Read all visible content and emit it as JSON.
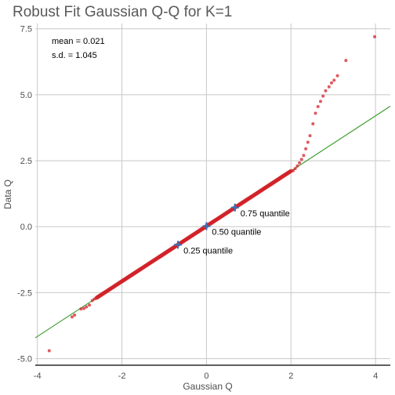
{
  "chart_data": {
    "type": "scatter",
    "title": "Robust Fit Gaussian Q-Q for K=1",
    "xlabel": "Gaussian Q",
    "ylabel": "Data Q",
    "xlim": [
      -4.05,
      4.35
    ],
    "ylim": [
      -5.25,
      7.7
    ],
    "x_ticks": [
      -4,
      -2,
      0,
      2,
      4
    ],
    "x_tick_labels": [
      "-4",
      "-2",
      "0",
      "2",
      "4"
    ],
    "y_ticks": [
      -5.0,
      -2.5,
      0.0,
      2.5,
      5.0,
      7.5
    ],
    "y_tick_labels": [
      "-5.0",
      "-2.5",
      "0.0",
      "2.5",
      "5.0",
      "7.5"
    ],
    "grid": true,
    "stats": {
      "mean_text": "mean = 0.021",
      "sd_text": "s.d. = 1.045"
    },
    "fit_line": {
      "intercept": 0.021,
      "slope": 1.045,
      "color": "#3a9a2a"
    },
    "quantile_markers": [
      {
        "x": -0.674,
        "y": -0.684,
        "label": "0.25 quantile"
      },
      {
        "x": 0.0,
        "y": 0.021,
        "label": "0.50 quantile"
      },
      {
        "x": 0.674,
        "y": 0.725,
        "label": "0.75 quantile"
      }
    ],
    "marker_color": "#3b6fb5",
    "point_color": "#d2232a",
    "body_segment": {
      "x_start": -2.6,
      "x_end": 2.0
    },
    "tail_points": [
      {
        "x": -3.72,
        "y": -4.7
      },
      {
        "x": -3.18,
        "y": -3.42
      },
      {
        "x": -3.12,
        "y": -3.35
      },
      {
        "x": -2.97,
        "y": -3.12
      },
      {
        "x": -2.9,
        "y": -3.1
      },
      {
        "x": -2.84,
        "y": -3.04
      },
      {
        "x": -2.77,
        "y": -2.97
      },
      {
        "x": -2.7,
        "y": -2.8
      },
      {
        "x": -2.65,
        "y": -2.74
      },
      {
        "x": 2.05,
        "y": 2.12
      },
      {
        "x": 2.1,
        "y": 2.2
      },
      {
        "x": 2.15,
        "y": 2.3
      },
      {
        "x": 2.2,
        "y": 2.42
      },
      {
        "x": 2.25,
        "y": 2.55
      },
      {
        "x": 2.3,
        "y": 2.7
      },
      {
        "x": 2.35,
        "y": 2.95
      },
      {
        "x": 2.4,
        "y": 3.2
      },
      {
        "x": 2.45,
        "y": 3.45
      },
      {
        "x": 2.52,
        "y": 3.9
      },
      {
        "x": 2.58,
        "y": 4.3
      },
      {
        "x": 2.64,
        "y": 4.55
      },
      {
        "x": 2.7,
        "y": 4.75
      },
      {
        "x": 2.76,
        "y": 4.95
      },
      {
        "x": 2.82,
        "y": 5.15
      },
      {
        "x": 2.9,
        "y": 5.3
      },
      {
        "x": 2.96,
        "y": 5.45
      },
      {
        "x": 3.02,
        "y": 5.55
      },
      {
        "x": 3.1,
        "y": 5.72
      },
      {
        "x": 3.3,
        "y": 6.3
      },
      {
        "x": 3.98,
        "y": 7.2
      }
    ]
  }
}
